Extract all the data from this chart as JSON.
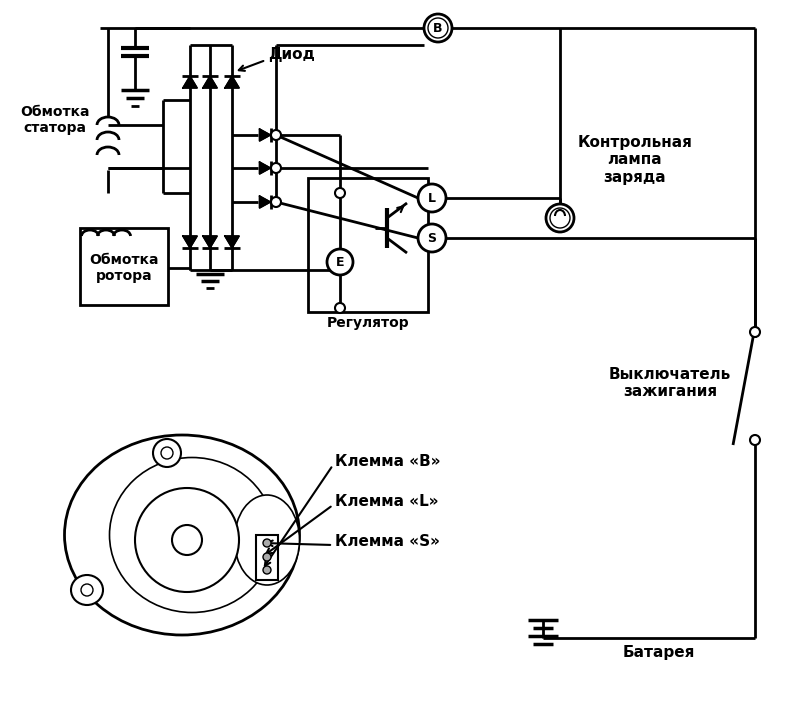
{
  "bg_color": "#ffffff",
  "lc": "#000000",
  "lw": 2.0,
  "labels": {
    "diod": "Диод",
    "stator": "Обмотка\nстатора",
    "rotor": "Обмотка\nротора",
    "regulator": "Регулятор",
    "control_lamp": "Контрольная\nлампа\nзаряда",
    "ignition": "Выключатель\nзажигания",
    "battery": "Батарея",
    "klB": "Клемма «B»",
    "klL": "Клемма «L»",
    "klS": "Клемма «S»"
  },
  "figsize": [
    8.0,
    7.19
  ],
  "dpi": 100
}
